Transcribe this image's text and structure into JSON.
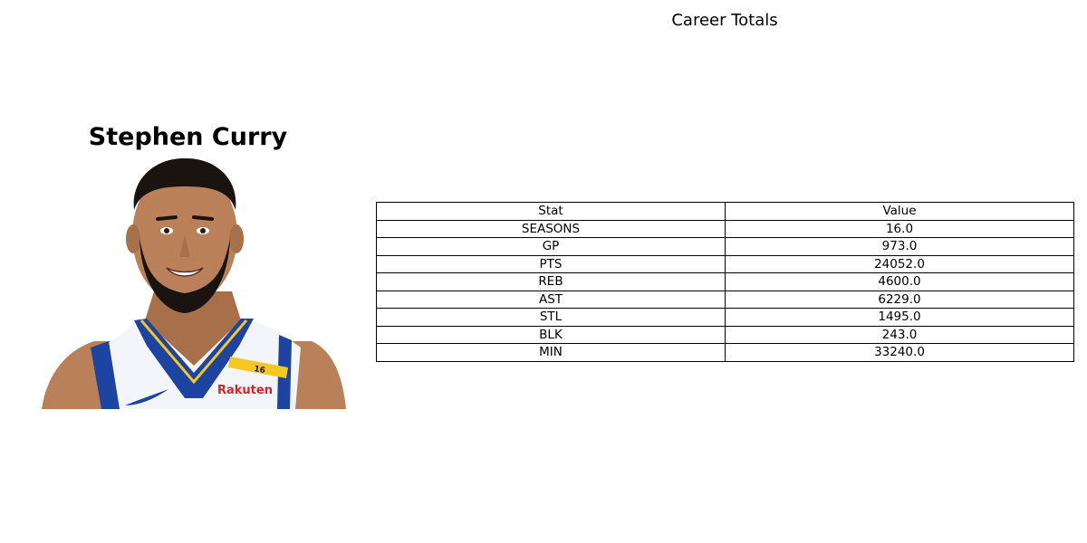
{
  "player": {
    "name": "Stephen Curry",
    "photo": {
      "alt": "Stephen Curry",
      "jersey_number": "16",
      "sponsor": "Rakuten",
      "colors": {
        "jersey_white": "#f4f5fa",
        "jersey_blue": "#1d44a0",
        "trim_gold": "#f5c722",
        "skin": "#b98059",
        "hair": "#1a1410",
        "sponsor_red": "#d0242b"
      }
    }
  },
  "chart_data": {
    "type": "table",
    "title": "Career Totals",
    "columns": [
      "Stat",
      "Value"
    ],
    "rows": [
      [
        "SEASONS",
        "16.0"
      ],
      [
        "GP",
        "973.0"
      ],
      [
        "PTS",
        "24052.0"
      ],
      [
        "REB",
        "4600.0"
      ],
      [
        "AST",
        "6229.0"
      ],
      [
        "STL",
        "1495.0"
      ],
      [
        "BLK",
        "243.0"
      ],
      [
        "MIN",
        "33240.0"
      ]
    ]
  }
}
